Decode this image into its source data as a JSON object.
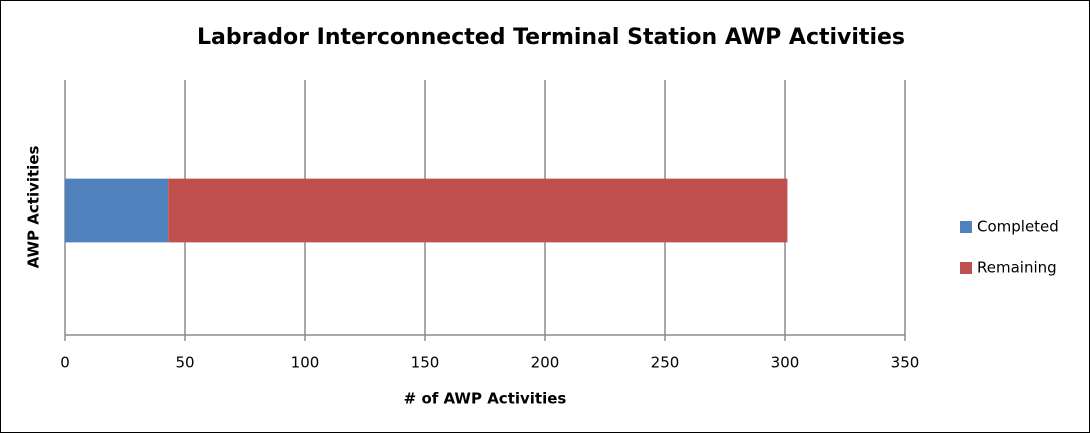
{
  "chart_data": {
    "type": "stacked-bar-horizontal",
    "title": "Labrador Interconnected Terminal Station AWP Activities",
    "x_label": "# of AWP Activities",
    "y_label": "AWP Activities",
    "categories": [
      null
    ],
    "series": [
      {
        "name": "Completed",
        "color": "#4f81bd",
        "values": [
          43
        ]
      },
      {
        "name": "Remaining",
        "color": "#c0504d",
        "values": [
          258
        ]
      }
    ],
    "xlim": [
      0,
      350
    ],
    "xticks": [
      0,
      50,
      100,
      150,
      200,
      250,
      300,
      350
    ],
    "grid": true,
    "legend": "right"
  }
}
